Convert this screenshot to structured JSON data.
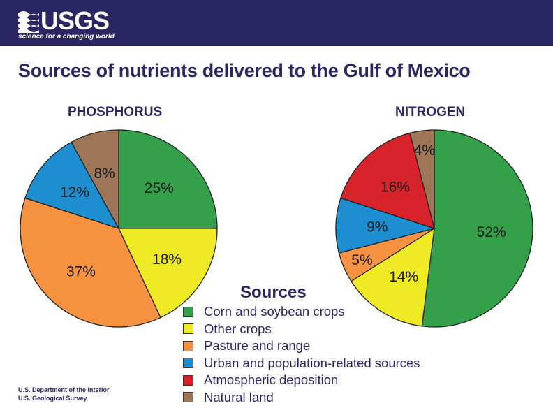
{
  "header": {
    "logo_text": "USGS",
    "tagline": "science for a changing world"
  },
  "title": "Sources of nutrients delivered to the Gulf of Mexico",
  "chart_data": [
    {
      "type": "pie",
      "title": "PHOSPHORUS",
      "slices": [
        {
          "label": "Corn and soybean crops",
          "value": 25,
          "display": "25%",
          "color": "#34a04a"
        },
        {
          "label": "Other crops",
          "value": 18,
          "display": "18%",
          "color": "#eeea23"
        },
        {
          "label": "Pasture and range",
          "value": 37,
          "display": "37%",
          "color": "#f69240"
        },
        {
          "label": "Urban and population-related sources",
          "value": 12,
          "display": "12%",
          "color": "#1d8ecf"
        },
        {
          "label": "Natural land",
          "value": 8,
          "display": "8%",
          "color": "#9c7656"
        }
      ]
    },
    {
      "type": "pie",
      "title": "NITROGEN",
      "slices": [
        {
          "label": "Corn and soybean crops",
          "value": 52,
          "display": "52%",
          "color": "#34a04a"
        },
        {
          "label": "Other crops",
          "value": 14,
          "display": "14%",
          "color": "#eeea23"
        },
        {
          "label": "Pasture and range",
          "value": 5,
          "display": "5%",
          "color": "#f69240"
        },
        {
          "label": "Urban and population-related sources",
          "value": 9,
          "display": "9%",
          "color": "#1d8ecf"
        },
        {
          "label": "Atmospheric deposition",
          "value": 16,
          "display": "16%",
          "color": "#d8232a"
        },
        {
          "label": "Natural land",
          "value": 4,
          "display": "4%",
          "color": "#9c7656"
        }
      ]
    }
  ],
  "legend": {
    "title": "Sources",
    "items": [
      {
        "label": "Corn and soybean crops",
        "color": "#34a04a"
      },
      {
        "label": "Other crops",
        "color": "#eeea23"
      },
      {
        "label": "Pasture and range",
        "color": "#f69240"
      },
      {
        "label": "Urban and population-related sources",
        "color": "#1d8ecf"
      },
      {
        "label": "Atmospheric deposition",
        "color": "#d8232a"
      },
      {
        "label": "Natural land",
        "color": "#9c7656"
      }
    ]
  },
  "footer": {
    "line1": "U.S. Department of the Interior",
    "line2": "U.S. Geological Survey"
  },
  "colors": {
    "banner": "#2a2563",
    "text": "#2a2563"
  }
}
